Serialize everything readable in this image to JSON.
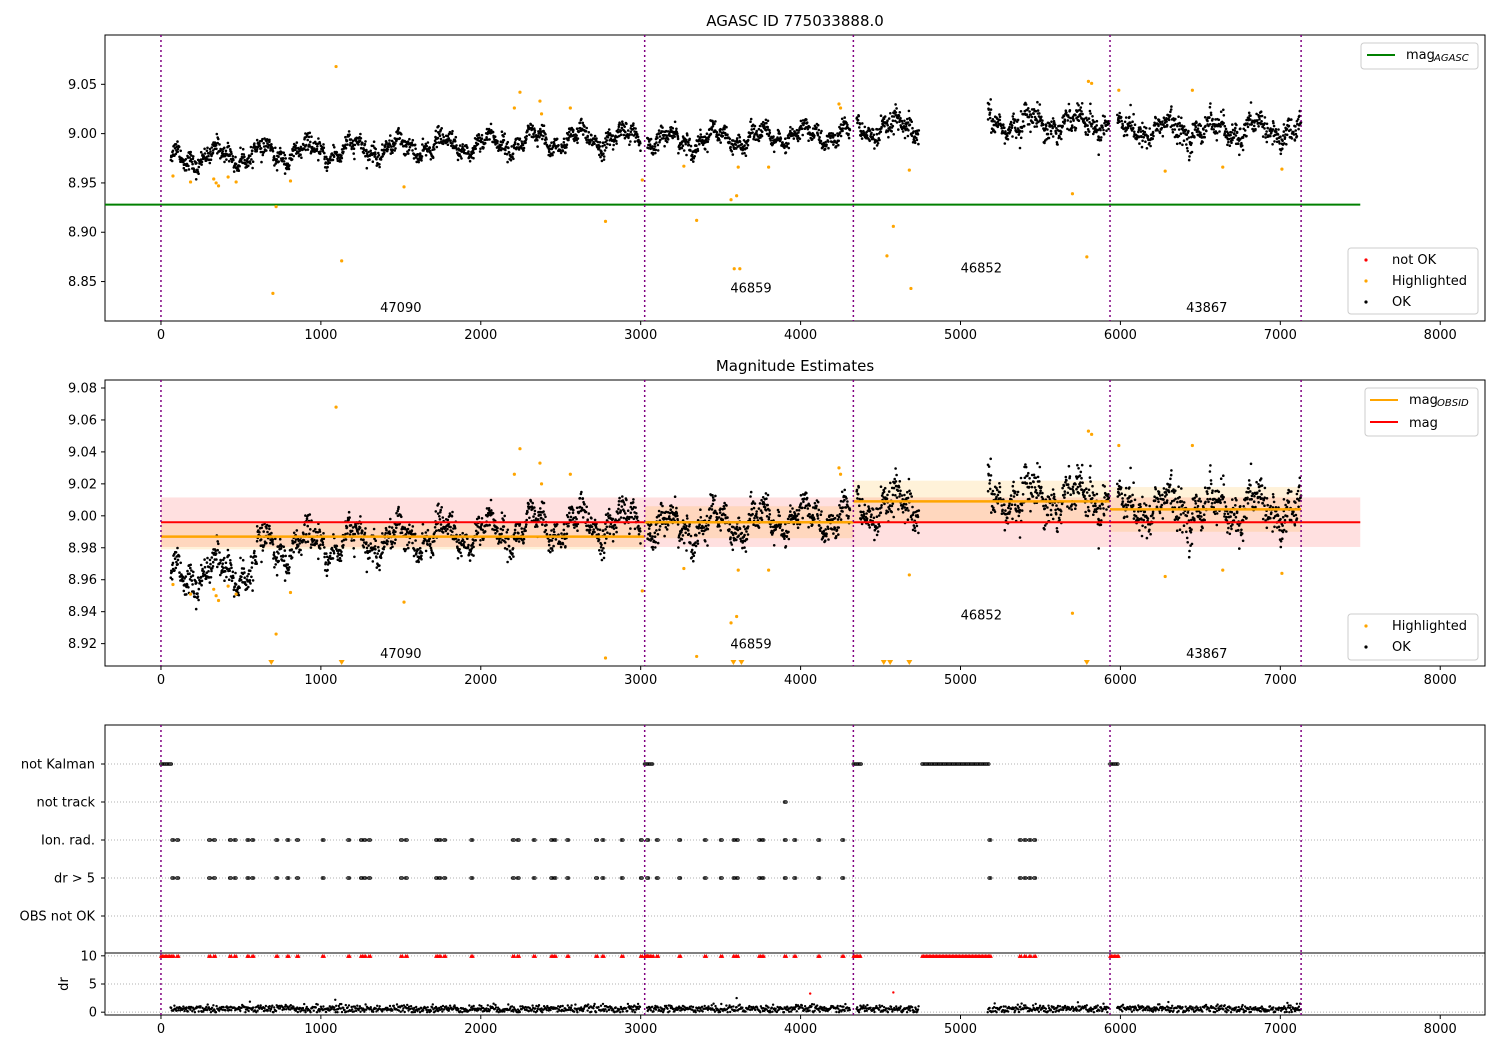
{
  "chart_data": [
    {
      "type": "scatter",
      "title": "AGASC ID 775033888.0",
      "xlabel": "",
      "ylabel": "",
      "xlim": [
        -350,
        8280
      ],
      "ylim": [
        8.81,
        9.1
      ],
      "xticks": [
        0,
        1000,
        2000,
        3000,
        4000,
        5000,
        6000,
        7000,
        8000
      ],
      "yticks": [
        8.85,
        8.9,
        8.95,
        9.0,
        9.05
      ],
      "ytick_labels": [
        "8.85",
        "8.90",
        "8.95",
        "9.00",
        "9.05"
      ],
      "obsid_boundaries": [
        0,
        3025,
        4330,
        5935,
        7130
      ],
      "obsid_labels": [
        {
          "text": "47090",
          "x": 1500,
          "y": 8.815
        },
        {
          "text": "46859",
          "x": 3690,
          "y": 8.835
        },
        {
          "text": "46852",
          "x": 5130,
          "y": 8.855
        },
        {
          "text": "43867",
          "x": 6540,
          "y": 8.815
        }
      ],
      "legend_top": [
        {
          "name": "mag$_{AGASC}$",
          "label": "mag",
          "sub": "AGASC",
          "color": "#008000"
        }
      ],
      "legend_bottom": [
        {
          "name": "not OK",
          "color": "#ff0000"
        },
        {
          "name": "Highlighted",
          "color": "#ffa500"
        },
        {
          "name": "OK",
          "color": "#000000"
        }
      ],
      "hlines": [
        {
          "name": "mag_AGASC",
          "y": 8.928,
          "x0": -350,
          "x1": 7500,
          "color": "#008000"
        }
      ],
      "grid": false
    },
    {
      "type": "scatter",
      "title": "Magnitude Estimates",
      "xlabel": "",
      "ylabel": "",
      "xlim": [
        -350,
        8280
      ],
      "ylim": [
        8.906,
        9.085
      ],
      "xticks": [
        0,
        1000,
        2000,
        3000,
        4000,
        5000,
        6000,
        7000,
        8000
      ],
      "yticks": [
        8.92,
        8.94,
        8.96,
        8.98,
        9.0,
        9.02,
        9.04,
        9.06,
        9.08
      ],
      "ytick_labels": [
        "8.92",
        "8.94",
        "8.96",
        "8.98",
        "9.00",
        "9.02",
        "9.04",
        "9.06",
        "9.08"
      ],
      "obsid_boundaries": [
        0,
        3025,
        4330,
        5935,
        7130
      ],
      "obsid_labels": [
        {
          "text": "47090",
          "x": 1500,
          "y": 8.911
        },
        {
          "text": "46859",
          "x": 3690,
          "y": 8.917
        },
        {
          "text": "46852",
          "x": 5130,
          "y": 8.935
        },
        {
          "text": "43867",
          "x": 6540,
          "y": 8.911
        }
      ],
      "legend_top": [
        {
          "name": "mag$_{OBSID}$",
          "label": "mag",
          "sub": "OBSID",
          "color": "#ffa500"
        },
        {
          "name": "mag",
          "label": "mag",
          "sub": "",
          "color": "#ff0000"
        }
      ],
      "legend_bottom": [
        {
          "name": "Highlighted",
          "color": "#ffa500"
        },
        {
          "name": "OK",
          "color": "#000000"
        }
      ],
      "mag_overall": {
        "y": 8.996,
        "band": [
          8.9805,
          9.0115
        ],
        "x0": 0,
        "x1": 7500
      },
      "mag_obsid": [
        {
          "x0": 0,
          "x1": 3025,
          "y": 8.987,
          "band": [
            8.979,
            8.995
          ]
        },
        {
          "x0": 3025,
          "x1": 4330,
          "y": 8.996,
          "band": [
            8.986,
            9.006
          ]
        },
        {
          "x0": 4330,
          "x1": 5935,
          "y": 9.009,
          "band": [
            8.996,
            9.022
          ]
        },
        {
          "x0": 5935,
          "x1": 7130,
          "y": 9.004,
          "band": [
            8.99,
            9.018
          ]
        }
      ],
      "grid": false
    },
    {
      "type": "scatter",
      "title": "",
      "xlabel": "",
      "xlim": [
        -350,
        8280
      ],
      "xticks": [
        0,
        1000,
        2000,
        3000,
        4000,
        5000,
        6000,
        7000,
        8000
      ],
      "flag_rows": [
        "not Kalman",
        "not track",
        "Ion. rad.",
        "dr > 5",
        "OBS not OK"
      ],
      "flags": {
        "not Kalman": [
          [
            0,
            70
          ],
          [
            3025,
            3080
          ],
          [
            4330,
            4380
          ],
          [
            4760,
            5180
          ],
          [
            5935,
            5990
          ]
        ],
        "not track": [
          [
            3900,
            3910
          ]
        ],
        "Ion. rad.": [
          70,
          100,
          300,
          330,
          430,
          460,
          540,
          570,
          720,
          790,
          850,
          1010,
          1170,
          1250,
          1270,
          1300,
          1500,
          1530,
          1720,
          1740,
          1770,
          1940,
          2200,
          2230,
          2330,
          2440,
          2460,
          2540,
          2720,
          2760,
          2880,
          3000,
          3040,
          3100,
          3240,
          3400,
          3500,
          3580,
          3600,
          3740,
          3760,
          3900,
          3960,
          4110,
          4260,
          5180,
          5370,
          5400,
          5430,
          5460
        ],
        "dr > 5": [
          70,
          100,
          300,
          330,
          430,
          460,
          540,
          570,
          720,
          790,
          850,
          1010,
          1170,
          1250,
          1270,
          1300,
          1500,
          1530,
          1720,
          1740,
          1770,
          1940,
          2200,
          2230,
          2330,
          2440,
          2460,
          2540,
          2720,
          2760,
          2880,
          3000,
          3040,
          3100,
          3240,
          3400,
          3500,
          3580,
          3600,
          3740,
          3760,
          3900,
          3960,
          4110,
          4260,
          5180,
          5370,
          5400,
          5430,
          5460
        ],
        "OBS not OK": []
      },
      "dr_ylabel": "dr",
      "dr_ylim": [
        -0.5,
        10.5
      ],
      "dr_yticks": [
        0,
        5,
        10
      ],
      "dr_ytick_labels": [
        "0",
        "5",
        "10"
      ],
      "dr_typical": 0.6,
      "dr_outliers": [
        {
          "x": 4060,
          "y": 3.3
        },
        {
          "x": 4580,
          "y": 3.5
        },
        {
          "x": 1090,
          "y": 2.2
        },
        {
          "x": 3600,
          "y": 2.5
        },
        {
          "x": 6300,
          "y": 1.8
        }
      ],
      "obsid_boundaries": [
        0,
        3025,
        4330,
        5935,
        7130
      ],
      "grid": "y-dotted"
    }
  ],
  "series_colors": {
    "ok": "#000000",
    "highlighted": "#ffa500",
    "not_ok": "#ff0000",
    "boundary": "#800080"
  },
  "highlighted_points": {
    "panel1": [
      {
        "x": 75,
        "y": 8.957
      },
      {
        "x": 185,
        "y": 8.951
      },
      {
        "x": 330,
        "y": 8.954
      },
      {
        "x": 345,
        "y": 8.95
      },
      {
        "x": 360,
        "y": 8.947
      },
      {
        "x": 420,
        "y": 8.956
      },
      {
        "x": 470,
        "y": 8.951
      },
      {
        "x": 700,
        "y": 8.838
      },
      {
        "x": 720,
        "y": 8.926
      },
      {
        "x": 810,
        "y": 8.952
      },
      {
        "x": 1095,
        "y": 9.068
      },
      {
        "x": 1130,
        "y": 8.871
      },
      {
        "x": 1520,
        "y": 8.946
      },
      {
        "x": 2210,
        "y": 9.026
      },
      {
        "x": 2245,
        "y": 9.042
      },
      {
        "x": 2370,
        "y": 9.033
      },
      {
        "x": 2380,
        "y": 9.02
      },
      {
        "x": 2560,
        "y": 9.026
      },
      {
        "x": 2780,
        "y": 8.911
      },
      {
        "x": 3010,
        "y": 8.953
      },
      {
        "x": 3270,
        "y": 8.967
      },
      {
        "x": 3350,
        "y": 8.912
      },
      {
        "x": 3565,
        "y": 8.933
      },
      {
        "x": 3600,
        "y": 8.937
      },
      {
        "x": 3610,
        "y": 8.966
      },
      {
        "x": 3585,
        "y": 8.863
      },
      {
        "x": 3620,
        "y": 8.863
      },
      {
        "x": 3800,
        "y": 8.966
      },
      {
        "x": 4240,
        "y": 9.03
      },
      {
        "x": 4250,
        "y": 9.026
      },
      {
        "x": 4540,
        "y": 8.876
      },
      {
        "x": 4580,
        "y": 8.906
      },
      {
        "x": 4680,
        "y": 8.963
      },
      {
        "x": 4690,
        "y": 8.843
      },
      {
        "x": 5700,
        "y": 8.939
      },
      {
        "x": 5790,
        "y": 8.875
      },
      {
        "x": 5800,
        "y": 9.053
      },
      {
        "x": 5820,
        "y": 9.051
      },
      {
        "x": 5990,
        "y": 9.044
      },
      {
        "x": 6280,
        "y": 8.962
      },
      {
        "x": 6450,
        "y": 9.044
      },
      {
        "x": 6640,
        "y": 8.966
      },
      {
        "x": 7010,
        "y": 8.964
      }
    ],
    "panel2_below": [
      690,
      1130,
      3580,
      3630,
      4520,
      4560,
      4680,
      5790
    ]
  },
  "ok_segments": [
    {
      "x0": 60,
      "x1": 3000,
      "y0": 8.975,
      "y1": 8.997,
      "sd": 0.008
    },
    {
      "x0": 3040,
      "x1": 4310,
      "y0": 8.992,
      "y1": 9.0,
      "sd": 0.008
    },
    {
      "x0": 4350,
      "x1": 4740,
      "y0": 9.004,
      "y1": 9.006,
      "sd": 0.01
    },
    {
      "x0": 5170,
      "x1": 5930,
      "y0": 9.01,
      "y1": 9.012,
      "sd": 0.011
    },
    {
      "x0": 5980,
      "x1": 7130,
      "y0": 9.005,
      "y1": 9.003,
      "sd": 0.011
    }
  ]
}
